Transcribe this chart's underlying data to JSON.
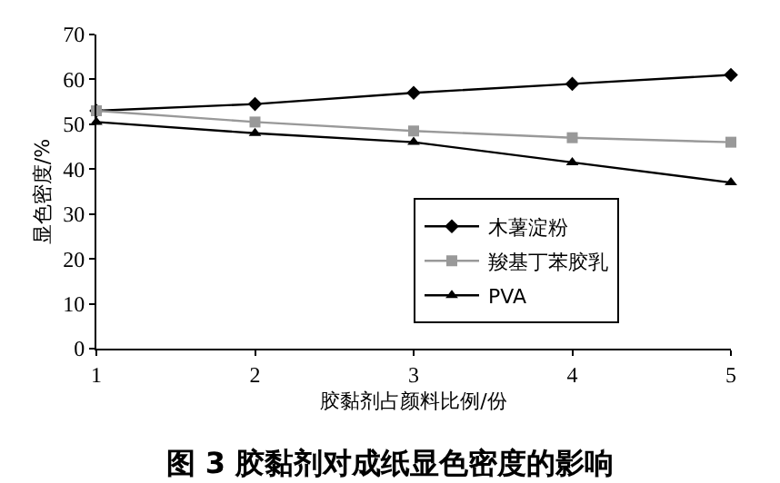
{
  "chart_data": {
    "type": "line",
    "title": "图 3 胶黏剂对成纸显色密度的影响",
    "xlabel": "胶黏剂占颜料比例/份",
    "ylabel": "显色密度/%",
    "x": [
      1,
      2,
      3,
      4,
      5
    ],
    "series": [
      {
        "name": "木薯淀粉",
        "color": "#000000",
        "marker": "diamond",
        "values": [
          53,
          54.5,
          57,
          59,
          61
        ]
      },
      {
        "name": "羧基丁苯胶乳",
        "color": "#999999",
        "marker": "square",
        "values": [
          53,
          50.5,
          48.5,
          47,
          46
        ]
      },
      {
        "name": "PVA",
        "color": "#000000",
        "marker": "triangle",
        "values": [
          50.5,
          48,
          46,
          41.5,
          37
        ]
      }
    ],
    "xlim": [
      1,
      5
    ],
    "xticks": [
      1,
      2,
      3,
      4,
      5
    ],
    "ylim": [
      0,
      70
    ],
    "yticks": [
      0,
      10,
      20,
      30,
      40,
      50,
      60,
      70
    ],
    "legend": "bottom right",
    "line_style": "solid"
  }
}
